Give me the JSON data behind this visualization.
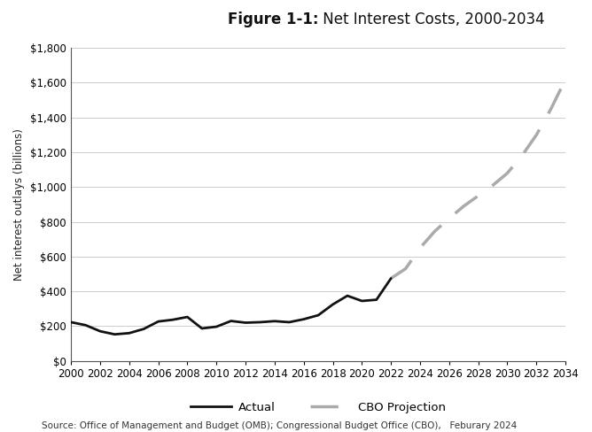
{
  "title_bold": "Figure 1-1:",
  "title_normal": " Net Interest Costs, 2000‑2034",
  "ylabel": "Net interest outlays (billions)",
  "source_text": "Source: Office of Management and Budget (OMB); Congressional Budget Office (CBO),   Feburary 2024",
  "actual_years": [
    2000,
    2001,
    2002,
    2003,
    2004,
    2005,
    2006,
    2007,
    2008,
    2009,
    2010,
    2011,
    2012,
    2013,
    2014,
    2015,
    2016,
    2017,
    2018,
    2019,
    2020,
    2021,
    2022
  ],
  "actual_values": [
    223,
    206,
    171,
    153,
    160,
    184,
    227,
    237,
    253,
    187,
    197,
    230,
    220,
    223,
    229,
    223,
    240,
    263,
    325,
    375,
    345,
    352,
    475
  ],
  "projection_years": [
    2022,
    2023,
    2024,
    2025,
    2026,
    2027,
    2028,
    2029,
    2030,
    2031,
    2032,
    2033,
    2034
  ],
  "projection_values": [
    475,
    530,
    650,
    745,
    820,
    890,
    950,
    1010,
    1080,
    1180,
    1300,
    1450,
    1620
  ],
  "actual_color": "#111111",
  "projection_color": "#aaaaaa",
  "background_color": "#ffffff",
  "grid_color": "#cccccc",
  "ylim": [
    0,
    1800
  ],
  "ytick_values": [
    0,
    200,
    400,
    600,
    800,
    1000,
    1200,
    1400,
    1600,
    1800
  ],
  "ytick_labels": [
    "$0",
    "$200",
    "$400",
    "$600",
    "$800",
    "$1,000",
    "$1,200",
    "$1,400",
    "$1,600",
    "$1,800"
  ],
  "xlim": [
    2000,
    2034
  ],
  "xticks": [
    2000,
    2002,
    2004,
    2006,
    2008,
    2010,
    2012,
    2014,
    2016,
    2018,
    2020,
    2022,
    2024,
    2026,
    2028,
    2030,
    2032,
    2034
  ],
  "legend_actual": "Actual",
  "legend_projection": "CBO Projection",
  "actual_linewidth": 2.0,
  "projection_linewidth": 2.5,
  "title_fontsize": 12,
  "label_fontsize": 8.5,
  "tick_fontsize": 8.5,
  "legend_fontsize": 9.5,
  "source_fontsize": 7.5
}
